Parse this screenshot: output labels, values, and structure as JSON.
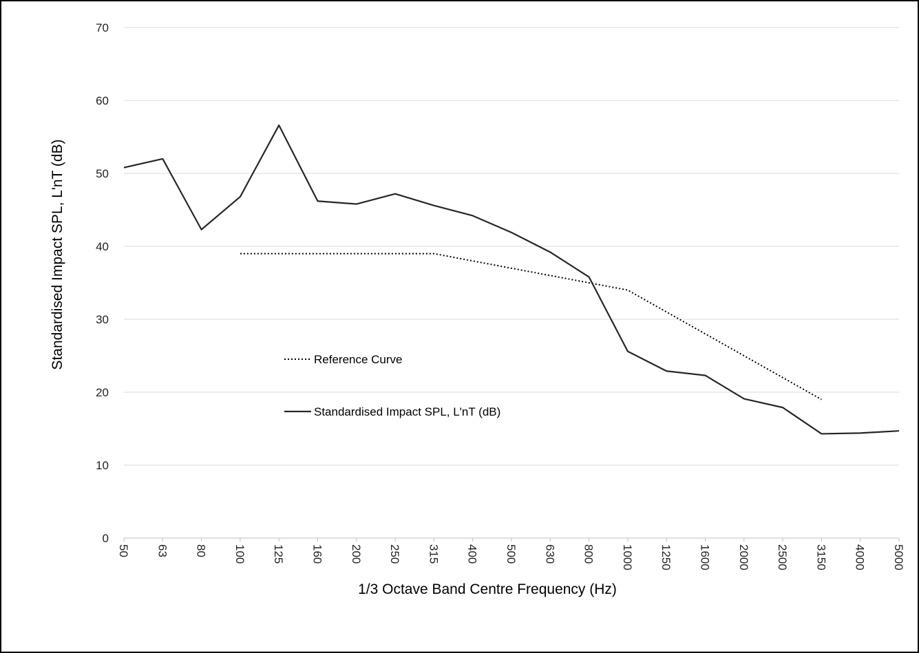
{
  "chart_data": {
    "type": "line",
    "title": "",
    "xlabel": "1/3 Octave Band Centre Frequency (Hz)",
    "ylabel": "Standardised Impact SPL,  L'nT (dB)",
    "categories": [
      "50",
      "63",
      "80",
      "100",
      "125",
      "160",
      "200",
      "250",
      "315",
      "400",
      "500",
      "630",
      "800",
      "1000",
      "1250",
      "1600",
      "2000",
      "2500",
      "3150",
      "4000",
      "5000"
    ],
    "ylim": [
      0,
      70
    ],
    "yticks": [
      0,
      10,
      20,
      30,
      40,
      50,
      60,
      70
    ],
    "grid": true,
    "legend_position": "center-left",
    "series": [
      {
        "name": "Reference Curve",
        "style": "dotted",
        "color": "#000000",
        "values": [
          null,
          null,
          null,
          39,
          39,
          39,
          39,
          39,
          39,
          38,
          37,
          36,
          35,
          34,
          31,
          28,
          25,
          22,
          19,
          null,
          null
        ]
      },
      {
        "name": "Standardised Impact SPL, L'nT (dB)",
        "style": "solid",
        "color": "#262626",
        "values": [
          50.8,
          52.0,
          42.3,
          46.8,
          56.6,
          46.2,
          45.8,
          47.2,
          45.6,
          44.2,
          41.9,
          39.2,
          35.8,
          25.6,
          22.9,
          22.3,
          19.1,
          17.9,
          14.3,
          14.4,
          14.7
        ]
      }
    ]
  }
}
